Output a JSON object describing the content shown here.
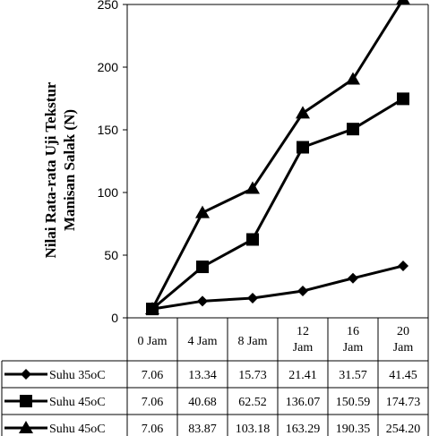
{
  "chart_data": {
    "type": "line",
    "categories": [
      "0 Jam",
      "4 Jam",
      "8 Jam",
      "12 Jam",
      "16 Jam",
      "20 Jam"
    ],
    "category_lines": [
      [
        "0 Jam"
      ],
      [
        "4 Jam"
      ],
      [
        "8 Jam"
      ],
      [
        "12",
        "Jam"
      ],
      [
        "16",
        "Jam"
      ],
      [
        "20",
        "Jam"
      ]
    ],
    "ylabel_lines": [
      "Nilai Rata-rata Uji Tekstur",
      "Manisan Salak (N)"
    ],
    "ylim": [
      0,
      250
    ],
    "yticks": [
      "0",
      "50",
      "100",
      "150",
      "200",
      "250"
    ],
    "ytick_values": [
      0,
      50,
      100,
      150,
      200,
      250
    ],
    "grid": false,
    "legend": "data-table",
    "series": [
      {
        "name": "Suhu 35oC",
        "marker": "diamond",
        "values": [
          7.06,
          13.34,
          15.73,
          21.41,
          31.57,
          41.45
        ],
        "labels": [
          "7.06",
          "13.34",
          "15.73",
          "21.41",
          "31.57",
          "41.45"
        ]
      },
      {
        "name": "Suhu 45oC",
        "marker": "square",
        "values": [
          7.06,
          40.68,
          62.52,
          136.07,
          150.59,
          174.73
        ],
        "labels": [
          "7.06",
          "40.68",
          "62.52",
          "136.07",
          "150.59",
          "174.73"
        ]
      },
      {
        "name": "Suhu 45oC",
        "marker": "triangle",
        "values": [
          7.06,
          83.87,
          103.18,
          163.29,
          190.35,
          254.2
        ],
        "labels": [
          "7.06",
          "83.87",
          "103.18",
          "163.29",
          "190.35",
          "254.20"
        ]
      }
    ]
  }
}
